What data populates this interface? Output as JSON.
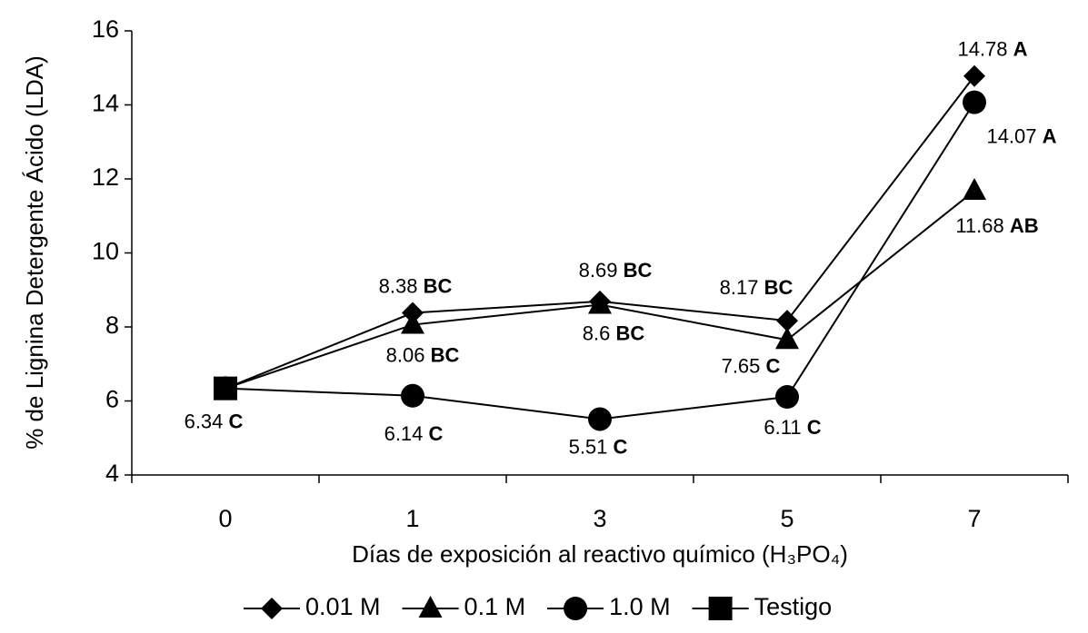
{
  "chart_data": {
    "type": "line",
    "xlabel": "Días de exposición al reactivo químico (H₃PO₄)",
    "ylabel": "% de  Lignina Detergente Ácido (LDA)",
    "categories": [
      "0",
      "1",
      "3",
      "5",
      "7"
    ],
    "ylim": [
      4,
      16
    ],
    "yticks": [
      4,
      6,
      8,
      10,
      12,
      14,
      16
    ],
    "series": [
      {
        "name": "0.01 M",
        "color": "#000000",
        "marker": "diamond",
        "values": [
          6.34,
          8.38,
          8.69,
          8.17,
          14.78
        ],
        "letters": [
          null,
          "BC",
          "BC",
          "BC",
          "A"
        ]
      },
      {
        "name": "0.1 M",
        "color": "#000000",
        "marker": "triangle",
        "values": [
          6.34,
          8.06,
          8.6,
          7.65,
          11.68
        ],
        "letters": [
          null,
          "BC",
          "BC",
          "C",
          "AB"
        ]
      },
      {
        "name": "1.0 M",
        "color": "#000000",
        "marker": "circle",
        "values": [
          6.34,
          6.14,
          5.51,
          6.11,
          14.07
        ],
        "letters": [
          null,
          "C",
          "C",
          "C",
          "A"
        ]
      },
      {
        "name": "Testigo",
        "color": "#000000",
        "marker": "square",
        "values": [
          6.34,
          null,
          null,
          null,
          null
        ],
        "letters": [
          "C",
          null,
          null,
          null,
          null
        ]
      }
    ]
  }
}
